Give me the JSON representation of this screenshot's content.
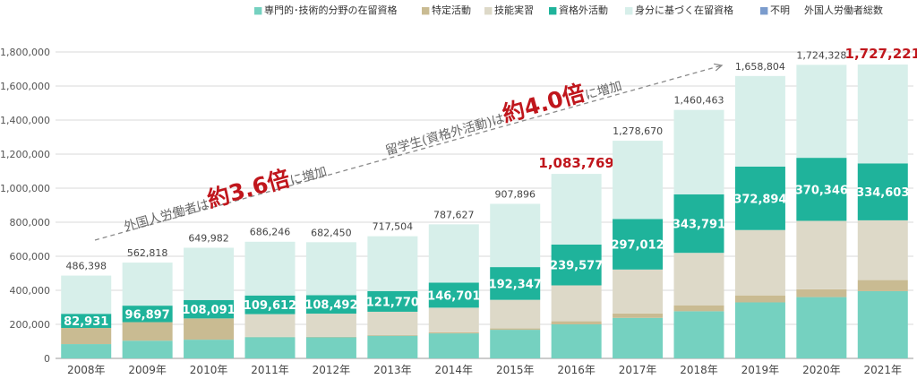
{
  "legend": {
    "items": [
      {
        "label": "専門的･技術的分野の在留資格",
        "color": "#75d1c0",
        "marker": "■"
      },
      {
        "label": "特定活動",
        "color": "#c9bb92",
        "marker": "■"
      },
      {
        "label": "技能実習",
        "color": "#ddd9c8",
        "marker": "■"
      },
      {
        "label": "資格外活動",
        "color": "#1fb39b",
        "marker": "■"
      },
      {
        "label": "身分に基づく在留資格",
        "color": "#d7efea",
        "marker": "■"
      },
      {
        "label": "不明",
        "color": "#7b9ccd",
        "marker": "■"
      },
      {
        "label": "外国人労働者総数",
        "color": "#ffffff",
        "marker": ""
      }
    ]
  },
  "annotations": {
    "a1": {
      "prefix": "外国人労働者は",
      "big": "約3.6倍",
      "suffix": "に増加"
    },
    "a2": {
      "prefix": "留学生(資格外活動)は",
      "big": "約4.0倍",
      "suffix": "に増加"
    }
  },
  "chart_data": {
    "type": "bar",
    "stacked": true,
    "categories": [
      "2008年",
      "2009年",
      "2010年",
      "2011年",
      "2012年",
      "2013年",
      "2014年",
      "2015年",
      "2016年",
      "2017年",
      "2018年",
      "2019年",
      "2020年",
      "2021年"
    ],
    "ylim": [
      0,
      1800000
    ],
    "yticks": [
      0,
      200000,
      400000,
      600000,
      800000,
      1000000,
      1200000,
      1400000,
      1600000,
      1800000
    ],
    "ytick_labels": [
      "0",
      "200,000",
      "400,000",
      "600,000",
      "800,000",
      "1,000,000",
      "1,200,000",
      "1,400,000",
      "1,600,000",
      "1,800,000"
    ],
    "grid": true,
    "legend_position": "top",
    "series": [
      {
        "name": "専門的･技術的分野の在留資格",
        "color": "#75d1c0",
        "values": [
          84000,
          104000,
          110000,
          125000,
          124000,
          133000,
          147000,
          168000,
          200000,
          238000,
          277000,
          329000,
          360000,
          395000
        ]
      },
      {
        "name": "特定活動",
        "color": "#c9bb92",
        "values": [
          95000,
          109000,
          125000,
          2000,
          3000,
          4000,
          6000,
          8000,
          18000,
          26000,
          35000,
          41000,
          46000,
          65000
        ]
      },
      {
        "name": "技能実習",
        "color": "#ddd9c8",
        "values": [
          0,
          0,
          0,
          133000,
          136000,
          137000,
          145000,
          168000,
          211000,
          258000,
          308000,
          384000,
          402000,
          351000
        ]
      },
      {
        "name": "資格外活動",
        "color": "#1fb39b",
        "values": [
          82931,
          96897,
          108091,
          109612,
          108492,
          121770,
          146701,
          192347,
          239577,
          297012,
          343791,
          372894,
          370346,
          334603
        ]
      },
      {
        "name": "身分に基づく在留資格",
        "color": "#d7efea",
        "values": [
          224467,
          252921,
          306891,
          315634,
          310958,
          321734,
          342926,
          371549,
          415192,
          459658,
          495672,
          531910,
          545982,
          580618
        ]
      },
      {
        "name": "不明",
        "color": "#7b9ccd",
        "values": [
          0,
          0,
          0,
          0,
          0,
          0,
          0,
          0,
          0,
          0,
          0,
          0,
          0,
          0
        ]
      }
    ],
    "totals": [
      486398,
      562818,
      649982,
      686246,
      682450,
      717504,
      787627,
      907896,
      1083769,
      1278670,
      1460463,
      1658804,
      1724328,
      1727221
    ],
    "total_labels": [
      "486,398",
      "562,818",
      "649,982",
      "686,246",
      "682,450",
      "717,504",
      "787,627",
      "907,896",
      "1,083,769",
      "1,278,670",
      "1,460,463",
      "1,658,804",
      "1,724,328",
      "1,727,221"
    ],
    "highlighted_totals": [
      8,
      13
    ],
    "highlight_color": "#c0161c",
    "segment_labels": [
      "82,931",
      "96,897",
      "108,091",
      "109,612",
      "108,492",
      "121,770",
      "146,701",
      "192,347",
      "239,577",
      "297,012",
      "343,791",
      "372,894",
      "370,346",
      "334,603"
    ]
  }
}
